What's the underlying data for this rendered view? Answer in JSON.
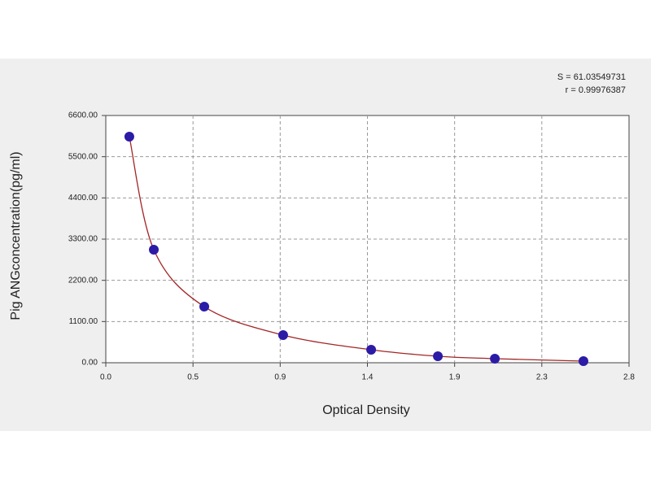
{
  "chart_data": {
    "type": "scatter",
    "title_lines": [
      "S = 61.03549731",
      "r = 0.99976387"
    ],
    "x_label": "Optical Density",
    "y_label": "Pig ANGconcentration(pg/ml)",
    "series": [
      {
        "color": "#2b1ba6",
        "curve_color": "#a32626",
        "x": [
          0.126,
          0.257,
          0.527,
          0.949,
          1.42,
          1.777,
          2.082,
          2.556
        ],
        "values": [
          6036,
          3018,
          1498,
          738,
          347,
          174,
          109,
          43
        ]
      }
    ],
    "xlim": [
      0,
      2.8
    ],
    "xticks": [
      {
        "value": 0,
        "label": "0.0"
      },
      {
        "value": 0.4667,
        "label": "0.5"
      },
      {
        "value": 0.9333,
        "label": "0.9"
      },
      {
        "value": 1.4,
        "label": "1.4"
      },
      {
        "value": 1.8667,
        "label": "1.9"
      },
      {
        "value": 2.3333,
        "label": "2.3"
      },
      {
        "value": 2.8,
        "label": "2.8"
      }
    ],
    "ylim": [
      0,
      6600
    ],
    "yticks": [
      {
        "value": 0,
        "label": "0.00"
      },
      {
        "value": 1100,
        "label": "1100.00"
      },
      {
        "value": 2200,
        "label": "2200.00"
      },
      {
        "value": 3300,
        "label": "3300.00"
      },
      {
        "value": 4400,
        "label": "4400.00"
      },
      {
        "value": 5500,
        "label": "5500.00"
      },
      {
        "value": 6600,
        "label": "6600.00"
      }
    ],
    "grid": true
  }
}
